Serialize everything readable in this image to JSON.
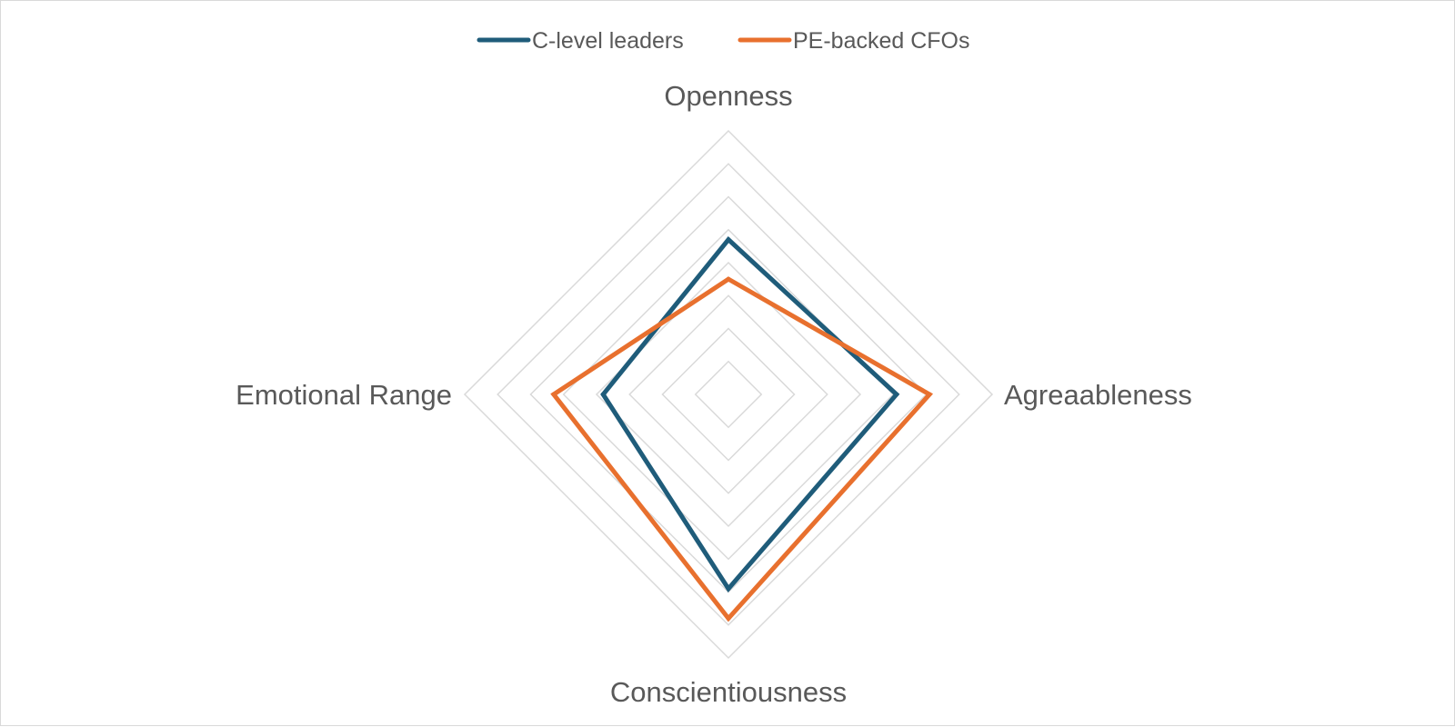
{
  "chart_data": {
    "type": "radar",
    "axes": [
      "Openness",
      "Agreaableness",
      "Conscientiousness",
      "Emotional Range"
    ],
    "range": [
      0,
      8
    ],
    "ring_count": 8,
    "grid": true,
    "legend_position": "top",
    "series": [
      {
        "name": "C-level leaders",
        "color": "#1f5c7a",
        "values": [
          4.7,
          5.1,
          5.9,
          3.8
        ]
      },
      {
        "name": "PE-backed CFOs",
        "color": "#e8702e",
        "values": [
          3.5,
          6.1,
          6.8,
          5.3
        ]
      }
    ]
  }
}
